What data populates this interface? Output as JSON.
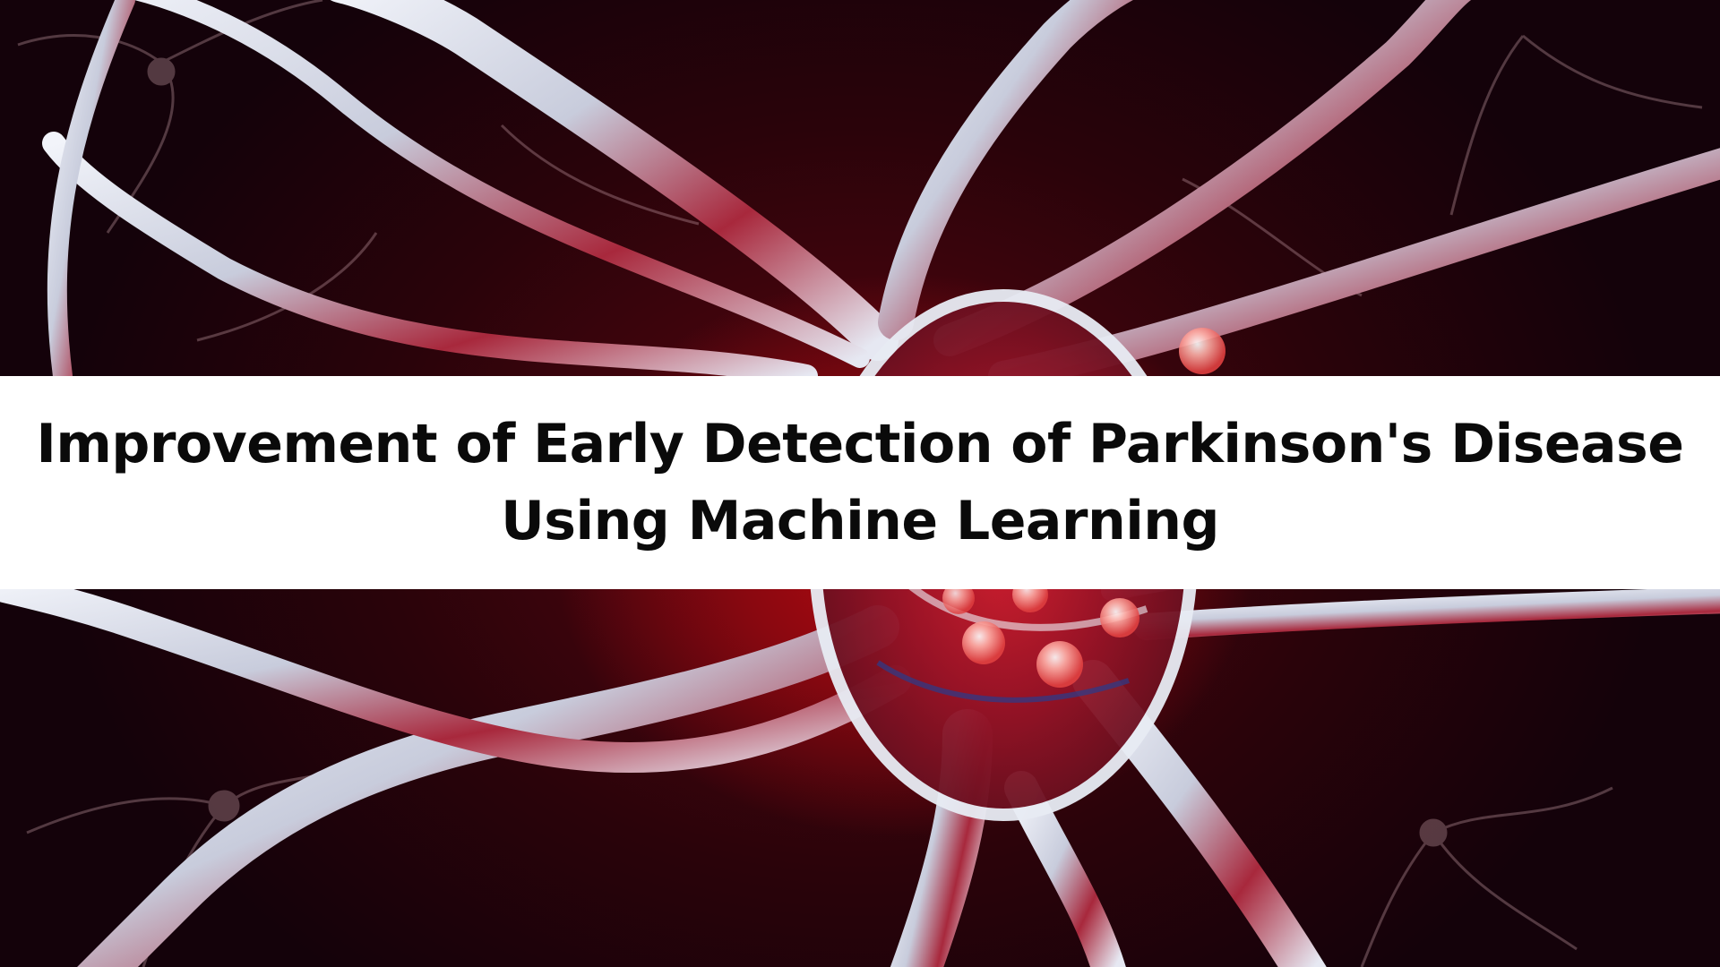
{
  "banner": {
    "title_line_1": "Improvement of Early Detection of Parkinson's Disease",
    "title_line_2": "Using Machine Learning"
  },
  "background": {
    "subject": "neuron-illustration",
    "colors": {
      "backdrop_dark": "#14020a",
      "backdrop_red": "#b80a10",
      "neuron_white": "#e8ecf4",
      "neuron_red": "#a01828",
      "neuron_blue": "#2a3c8c",
      "band": "#ffffff",
      "title_text": "#0a0a0a"
    }
  }
}
